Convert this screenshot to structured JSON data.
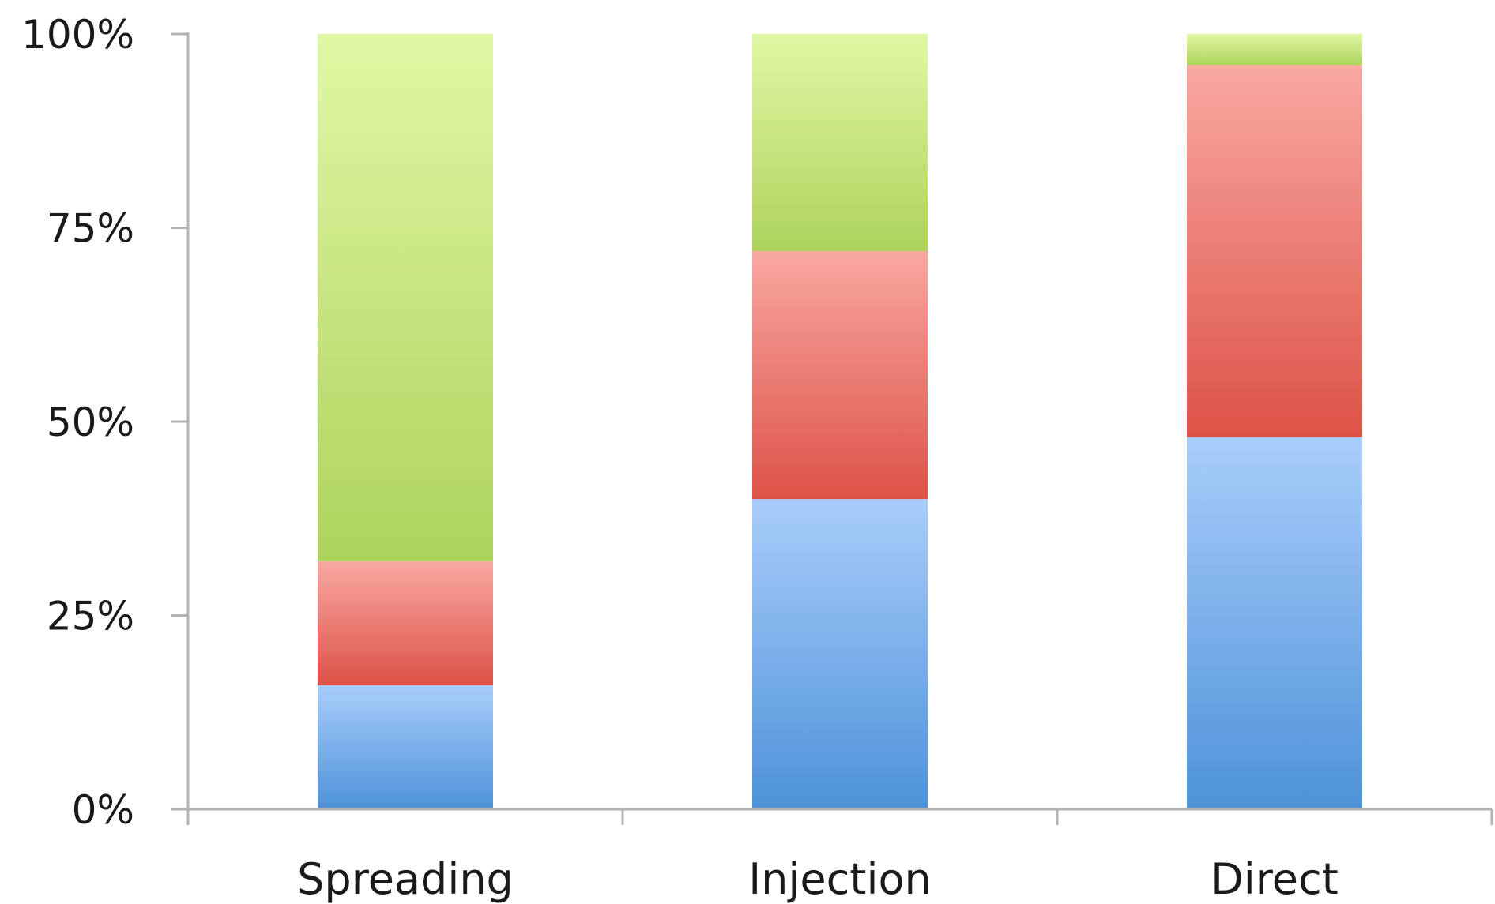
{
  "chart_data": {
    "type": "bar",
    "stacked": true,
    "normalized": true,
    "categories": [
      "Spreading",
      "Injection",
      "Direct"
    ],
    "series": [
      {
        "color": "#5b9bdf",
        "values": [
          16,
          40,
          48
        ]
      },
      {
        "color": "#e0625a",
        "values": [
          16,
          32,
          48
        ]
      },
      {
        "color": "#b7d768",
        "values": [
          68,
          28,
          4
        ]
      }
    ],
    "ylim": [
      0,
      100
    ],
    "yticks": [
      0,
      25,
      50,
      75,
      100
    ],
    "ytick_labels": [
      "0%",
      "25%",
      "50%",
      "75%",
      "100%"
    ],
    "grid": false,
    "legend": "none"
  }
}
